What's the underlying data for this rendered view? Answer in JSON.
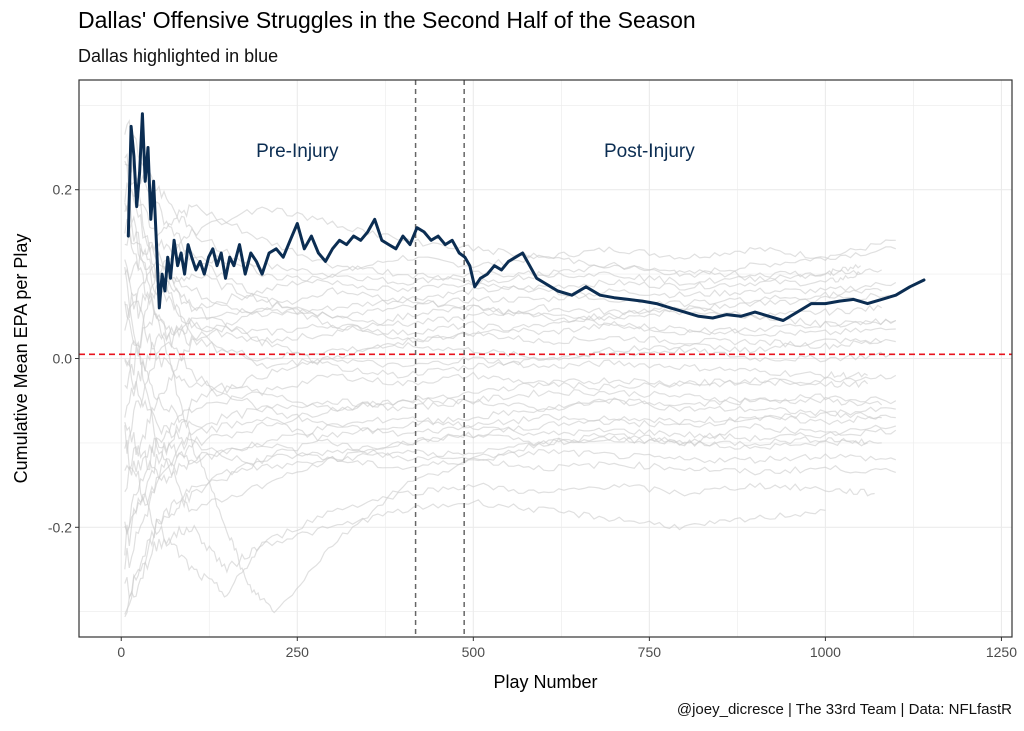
{
  "colors": {
    "dallas": "#0B2D52",
    "others": "#CCCCCC",
    "reference_line": "#E8131E",
    "injury_lines": "#666666",
    "grid": "#EBEBEB",
    "panel_border": "#333333"
  },
  "chart_data": {
    "type": "line",
    "title": "Dallas' Offensive Struggles in the Second Half of the Season",
    "subtitle": "Dallas highlighted in blue",
    "caption": "@joey_dicresce | The 33rd Team | Data: NFLfastR",
    "xlabel": "Play Number",
    "ylabel": "Cumulative Mean EPA per Play",
    "xlim": [
      -60,
      1265
    ],
    "ylim": [
      -0.33,
      0.33
    ],
    "x_ticks": [
      0,
      250,
      500,
      750,
      1000,
      1250
    ],
    "x_tick_labels": [
      "0",
      "250",
      "500",
      "750",
      "1000",
      "1250"
    ],
    "y_ticks": [
      -0.2,
      0.0,
      0.2
    ],
    "y_tick_labels": [
      "-0.2",
      "0.0",
      "0.2"
    ],
    "grid": true,
    "legend": "none",
    "reference_hline": 0.005,
    "vlines": [
      418,
      487
    ],
    "annotations": [
      {
        "text": "Pre-Injury",
        "x": 250,
        "y": 0.247
      },
      {
        "text": "Post-Injury",
        "x": 750,
        "y": 0.247
      }
    ],
    "highlight_series": {
      "name": "Dallas",
      "x": [
        10,
        14,
        18,
        22,
        26,
        30,
        34,
        38,
        42,
        46,
        50,
        54,
        58,
        62,
        66,
        70,
        75,
        80,
        85,
        90,
        95,
        100,
        106,
        112,
        118,
        124,
        130,
        136,
        142,
        148,
        154,
        160,
        168,
        176,
        184,
        192,
        200,
        210,
        220,
        230,
        240,
        250,
        260,
        270,
        280,
        290,
        300,
        310,
        320,
        330,
        340,
        350,
        360,
        370,
        380,
        390,
        400,
        410,
        420,
        430,
        440,
        450,
        460,
        470,
        480,
        488,
        495,
        502,
        510,
        520,
        530,
        540,
        550,
        560,
        570,
        580,
        590,
        600,
        610,
        620,
        640,
        660,
        680,
        700,
        720,
        740,
        760,
        780,
        800,
        820,
        840,
        860,
        880,
        900,
        920,
        940,
        960,
        980,
        1000,
        1020,
        1040,
        1060,
        1080,
        1100,
        1120,
        1140
      ],
      "y": [
        0.145,
        0.275,
        0.24,
        0.18,
        0.22,
        0.29,
        0.21,
        0.25,
        0.165,
        0.21,
        0.135,
        0.06,
        0.1,
        0.08,
        0.12,
        0.095,
        0.14,
        0.11,
        0.125,
        0.1,
        0.135,
        0.12,
        0.105,
        0.115,
        0.1,
        0.12,
        0.13,
        0.11,
        0.125,
        0.095,
        0.12,
        0.11,
        0.135,
        0.1,
        0.125,
        0.115,
        0.1,
        0.125,
        0.13,
        0.12,
        0.14,
        0.16,
        0.13,
        0.145,
        0.125,
        0.115,
        0.13,
        0.14,
        0.135,
        0.145,
        0.14,
        0.15,
        0.165,
        0.14,
        0.135,
        0.13,
        0.145,
        0.135,
        0.155,
        0.15,
        0.14,
        0.145,
        0.135,
        0.14,
        0.125,
        0.12,
        0.11,
        0.085,
        0.095,
        0.1,
        0.11,
        0.105,
        0.115,
        0.12,
        0.125,
        0.11,
        0.095,
        0.09,
        0.085,
        0.08,
        0.075,
        0.085,
        0.075,
        0.072,
        0.07,
        0.068,
        0.065,
        0.06,
        0.055,
        0.05,
        0.048,
        0.052,
        0.05,
        0.055,
        0.05,
        0.045,
        0.055,
        0.065,
        0.065,
        0.068,
        0.07,
        0.065,
        0.07,
        0.075,
        0.085,
        0.093
      ]
    },
    "other_series": [
      {
        "x": [
          5,
          50,
          100,
          200,
          300,
          400,
          500,
          600,
          700,
          800,
          900,
          1000,
          1100
        ],
        "y": [
          0.1,
          0.14,
          0.12,
          0.11,
          0.1,
          0.12,
          0.11,
          0.12,
          0.13,
          0.12,
          0.13,
          0.12,
          0.14
        ]
      },
      {
        "x": [
          5,
          50,
          100,
          200,
          300,
          400,
          500,
          600,
          700,
          800,
          900,
          1000,
          1100
        ],
        "y": [
          0.15,
          0.1,
          0.06,
          0.08,
          0.1,
          0.09,
          0.1,
          0.1,
          0.11,
          0.1,
          0.11,
          0.12,
          0.13
        ]
      },
      {
        "x": [
          5,
          50,
          100,
          200,
          300,
          400,
          500,
          600,
          700,
          800,
          900,
          1000,
          1050
        ],
        "y": [
          0.2,
          0.12,
          0.08,
          0.05,
          0.06,
          0.07,
          0.08,
          0.085,
          0.09,
          0.085,
          0.09,
          0.09,
          0.1
        ]
      },
      {
        "x": [
          5,
          50,
          100,
          200,
          300,
          400,
          500,
          600,
          700,
          800,
          900,
          1000,
          1100
        ],
        "y": [
          -0.1,
          0.0,
          0.05,
          0.06,
          0.05,
          0.06,
          0.07,
          0.07,
          0.08,
          0.075,
          0.08,
          0.08,
          0.09
        ]
      },
      {
        "x": [
          5,
          50,
          100,
          200,
          300,
          400,
          500,
          600,
          700,
          800,
          900,
          1000,
          1080
        ],
        "y": [
          0.05,
          0.08,
          0.1,
          0.07,
          0.05,
          0.04,
          0.05,
          0.06,
          0.055,
          0.06,
          0.05,
          0.055,
          0.06
        ]
      },
      {
        "x": [
          5,
          50,
          100,
          200,
          300,
          400,
          500,
          600,
          700,
          800,
          900,
          1000,
          1100
        ],
        "y": [
          -0.05,
          0.02,
          0.04,
          0.03,
          0.04,
          0.03,
          0.04,
          0.03,
          0.04,
          0.035,
          0.03,
          0.03,
          0.035
        ]
      },
      {
        "x": [
          5,
          50,
          100,
          200,
          300,
          400,
          500,
          600,
          700,
          800,
          900,
          1000,
          1080
        ],
        "y": [
          0.25,
          0.18,
          0.12,
          0.07,
          0.04,
          0.02,
          0.03,
          0.02,
          0.025,
          0.02,
          0.02,
          0.015,
          0.02
        ]
      },
      {
        "x": [
          5,
          50,
          100,
          200,
          300,
          400,
          500,
          600,
          700,
          800,
          900,
          1000,
          1100
        ],
        "y": [
          0.0,
          0.05,
          0.02,
          0.0,
          0.01,
          0.015,
          0.01,
          0.0,
          0.005,
          0.01,
          0.0,
          0.0,
          0.005
        ]
      },
      {
        "x": [
          5,
          50,
          100,
          200,
          300,
          400,
          500,
          600,
          700,
          800,
          900,
          1000,
          1060
        ],
        "y": [
          -0.2,
          -0.1,
          -0.05,
          -0.02,
          0.0,
          -0.01,
          0.0,
          -0.01,
          -0.005,
          -0.01,
          -0.015,
          -0.02,
          -0.02
        ]
      },
      {
        "x": [
          5,
          50,
          100,
          200,
          300,
          400,
          500,
          600,
          700,
          800,
          900,
          1000,
          1100
        ],
        "y": [
          0.1,
          0.0,
          -0.03,
          -0.04,
          -0.02,
          -0.03,
          -0.02,
          -0.03,
          -0.025,
          -0.03,
          -0.03,
          -0.025,
          -0.02
        ]
      },
      {
        "x": [
          5,
          50,
          100,
          200,
          300,
          400,
          500,
          600,
          700,
          800,
          900,
          1000,
          1080
        ],
        "y": [
          -0.25,
          -0.15,
          -0.1,
          -0.08,
          -0.06,
          -0.05,
          -0.05,
          -0.04,
          -0.04,
          -0.045,
          -0.05,
          -0.05,
          -0.055
        ]
      },
      {
        "x": [
          5,
          50,
          100,
          200,
          300,
          400,
          500,
          600,
          700,
          800,
          900,
          1000,
          1100
        ],
        "y": [
          0.05,
          -0.05,
          -0.08,
          -0.06,
          -0.05,
          -0.06,
          -0.05,
          -0.06,
          -0.05,
          -0.06,
          -0.06,
          -0.065,
          -0.06
        ]
      },
      {
        "x": [
          5,
          50,
          100,
          200,
          300,
          400,
          500,
          600,
          700,
          800,
          900,
          1000,
          1080
        ],
        "y": [
          -0.15,
          -0.1,
          -0.12,
          -0.1,
          -0.08,
          -0.07,
          -0.08,
          -0.07,
          -0.075,
          -0.08,
          -0.07,
          -0.075,
          -0.07
        ]
      },
      {
        "x": [
          5,
          50,
          100,
          200,
          300,
          400,
          500,
          600,
          700,
          800,
          900,
          1000,
          1100
        ],
        "y": [
          0.15,
          0.05,
          -0.02,
          -0.06,
          -0.08,
          -0.09,
          -0.08,
          -0.09,
          -0.085,
          -0.09,
          -0.095,
          -0.09,
          -0.085
        ]
      },
      {
        "x": [
          5,
          50,
          100,
          200,
          300,
          400,
          500,
          600,
          700,
          800,
          900,
          1000,
          1060
        ],
        "y": [
          -0.28,
          -0.2,
          -0.15,
          -0.12,
          -0.11,
          -0.1,
          -0.09,
          -0.1,
          -0.095,
          -0.1,
          -0.1,
          -0.095,
          -0.1
        ]
      },
      {
        "x": [
          5,
          50,
          100,
          200,
          300,
          400,
          500,
          600,
          700,
          800,
          900,
          1000,
          1100
        ],
        "y": [
          0.0,
          -0.08,
          -0.1,
          -0.13,
          -0.12,
          -0.11,
          -0.12,
          -0.11,
          -0.115,
          -0.12,
          -0.12,
          -0.115,
          -0.12
        ]
      },
      {
        "x": [
          5,
          50,
          100,
          200,
          300,
          400,
          500,
          600,
          700,
          800,
          900,
          1000,
          1100
        ],
        "y": [
          -0.2,
          -0.15,
          -0.12,
          -0.1,
          -0.12,
          -0.13,
          -0.12,
          -0.13,
          -0.125,
          -0.13,
          -0.135,
          -0.13,
          -0.135
        ]
      },
      {
        "x": [
          5,
          50,
          100,
          150,
          200,
          300,
          400,
          500,
          600,
          700,
          800,
          900,
          1000,
          1070
        ],
        "y": [
          -0.1,
          -0.2,
          -0.25,
          -0.28,
          -0.22,
          -0.18,
          -0.16,
          -0.15,
          -0.16,
          -0.15,
          -0.16,
          -0.15,
          -0.155,
          -0.16
        ]
      },
      {
        "x": [
          5,
          50,
          100,
          150,
          200,
          300,
          400,
          500,
          600,
          700,
          800,
          900,
          1000
        ],
        "y": [
          -0.3,
          -0.22,
          -0.2,
          -0.25,
          -0.22,
          -0.2,
          -0.18,
          -0.17,
          -0.18,
          -0.19,
          -0.2,
          -0.19,
          -0.18
        ]
      },
      {
        "x": [
          5,
          50,
          100,
          150,
          180,
          220,
          300,
          400,
          500,
          600,
          700,
          800,
          900,
          1000,
          1100
        ],
        "y": [
          0.2,
          0.05,
          -0.1,
          -0.2,
          -0.27,
          -0.3,
          -0.22,
          -0.15,
          -0.12,
          -0.1,
          -0.09,
          -0.1,
          -0.08,
          -0.09,
          -0.08
        ]
      },
      {
        "x": [
          5,
          50,
          100,
          200,
          300,
          400,
          500,
          600,
          700,
          800,
          900,
          1000,
          1100
        ],
        "y": [
          -0.29,
          -0.2,
          -0.16,
          -0.12,
          -0.09,
          -0.08,
          -0.07,
          -0.06,
          -0.05,
          -0.055,
          -0.05,
          -0.045,
          -0.05
        ]
      },
      {
        "x": [
          5,
          50,
          100,
          200,
          300,
          400,
          500,
          600,
          700,
          800,
          900,
          1000,
          1080
        ],
        "y": [
          0.28,
          0.2,
          0.15,
          0.1,
          0.09,
          0.08,
          0.09,
          0.1,
          0.1,
          0.09,
          0.095,
          0.1,
          0.105
        ]
      },
      {
        "x": [
          5,
          50,
          100,
          200,
          300,
          400,
          500,
          600,
          700,
          800,
          900,
          1000,
          1050
        ],
        "y": [
          -0.05,
          0.1,
          0.15,
          0.18,
          0.16,
          0.14,
          0.13,
          0.12,
          0.11,
          0.1,
          0.1,
          0.1,
          0.11
        ]
      },
      {
        "x": [
          5,
          50,
          100,
          200,
          300,
          400,
          500,
          600,
          700,
          800,
          900,
          1000,
          1100
        ],
        "y": [
          0.1,
          -0.1,
          -0.18,
          -0.15,
          -0.12,
          -0.1,
          -0.09,
          -0.08,
          -0.07,
          -0.075,
          -0.07,
          -0.065,
          -0.07
        ]
      },
      {
        "x": [
          5,
          50,
          100,
          200,
          300,
          400,
          500,
          600,
          700,
          800,
          900,
          1000,
          1100
        ],
        "y": [
          -0.15,
          -0.05,
          0.02,
          0.06,
          0.08,
          0.07,
          0.06,
          0.05,
          0.05,
          0.055,
          0.05,
          0.04,
          0.045
        ]
      },
      {
        "x": [
          5,
          50,
          100,
          200,
          300,
          400,
          500,
          600,
          700,
          800,
          900,
          1000,
          1080
        ],
        "y": [
          0.22,
          0.15,
          0.18,
          0.14,
          0.11,
          0.1,
          0.09,
          0.08,
          0.07,
          0.065,
          0.07,
          0.075,
          0.08
        ]
      },
      {
        "x": [
          5,
          50,
          100,
          200,
          300,
          400,
          500,
          600,
          700,
          800,
          900,
          1000,
          1100
        ],
        "y": [
          0.05,
          0.12,
          0.06,
          0.02,
          -0.01,
          -0.02,
          -0.01,
          0.0,
          0.01,
          0.015,
          0.01,
          0.02,
          0.02
        ]
      },
      {
        "x": [
          5,
          50,
          100,
          200,
          300,
          400,
          500,
          600,
          700,
          800,
          900,
          1000,
          1060
        ],
        "y": [
          -0.22,
          -0.12,
          -0.06,
          -0.04,
          -0.06,
          -0.05,
          -0.04,
          -0.03,
          -0.035,
          -0.03,
          -0.025,
          -0.03,
          -0.03
        ]
      },
      {
        "x": [
          5,
          50,
          100,
          200,
          300,
          400,
          500,
          600,
          700,
          800,
          900,
          1000,
          1100
        ],
        "y": [
          0.18,
          0.08,
          0.04,
          0.02,
          0.03,
          0.05,
          0.06,
          0.05,
          0.04,
          0.03,
          0.035,
          0.04,
          0.045
        ]
      },
      {
        "x": [
          5,
          50,
          100,
          200,
          300,
          400,
          500,
          600,
          700,
          800,
          900,
          1000,
          1080
        ],
        "y": [
          -0.08,
          -0.14,
          -0.09,
          -0.07,
          -0.1,
          -0.12,
          -0.11,
          -0.1,
          -0.095,
          -0.1,
          -0.105,
          -0.1,
          -0.1
        ]
      },
      {
        "x": [
          5,
          50,
          100,
          200,
          300,
          400,
          500,
          600,
          700,
          800,
          900,
          1000,
          1090
        ],
        "y": [
          0.25,
          0.1,
          0.03,
          -0.01,
          0.0,
          0.02,
          0.03,
          0.04,
          0.05,
          0.06,
          0.065,
          0.07,
          0.075
        ]
      }
    ]
  }
}
